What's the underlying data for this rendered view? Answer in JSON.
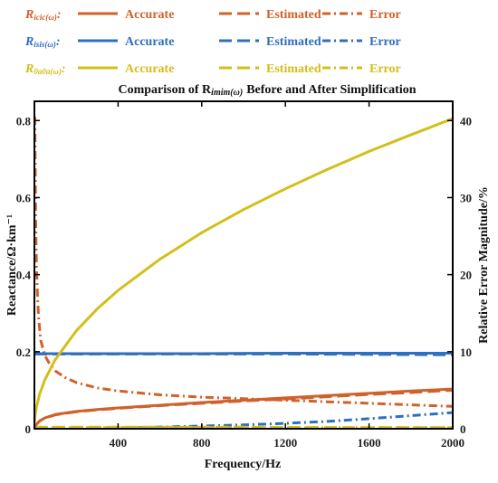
{
  "chart_data": {
    "type": "line",
    "title": "Comparison of R",
    "title_sub": "imim(ω)",
    "title_suffix": "Before and After Simplification",
    "xlabel": "Frequency/Hz",
    "ylabel_left": "Reactance/Ω·km⁻¹",
    "ylabel_right": "Relative Error Magnitude/%",
    "xlim": [
      0,
      2000
    ],
    "ylim_left": [
      0,
      0.85
    ],
    "ylim_right": [
      0,
      42.5
    ],
    "x_ticks": [
      400,
      800,
      1200,
      1600,
      2000
    ],
    "y_ticks_left": [
      0,
      0.2,
      0.4,
      0.6,
      0.8
    ],
    "y_ticks_right": [
      0,
      10,
      20,
      30,
      40
    ],
    "x_tick_labels": [
      "400",
      "800",
      "1200",
      "1600",
      "2000"
    ],
    "y_tick_labels_left": [
      "0",
      "0.2",
      "0.4",
      "0.6",
      "0.8"
    ],
    "y_tick_labels_right": [
      "0",
      "10",
      "20",
      "30",
      "40"
    ],
    "legend_position": "above plot",
    "legend": {
      "col_labels": [
        "Accurate",
        "Estimated",
        "Error"
      ],
      "groups": [
        {
          "name": "R",
          "sub": "icic(ω)",
          "color": "#D0612A"
        },
        {
          "name": "R",
          "sub": "isis(ω)",
          "color": "#2E6FBF"
        },
        {
          "name": "R",
          "sub": "0a0a(ω)",
          "color": "#D4BE1A"
        }
      ]
    },
    "series": [
      {
        "group": 0,
        "kind": "accurate",
        "axis": "left",
        "style": "solid",
        "color": "#D0612A",
        "x": [
          1,
          5,
          10,
          25,
          50,
          100,
          200,
          300,
          400,
          600,
          800,
          1000,
          1200,
          1400,
          1600,
          1800,
          2000
        ],
        "y": [
          0.003,
          0.008,
          0.012,
          0.02,
          0.028,
          0.037,
          0.045,
          0.05,
          0.054,
          0.061,
          0.068,
          0.074,
          0.08,
          0.086,
          0.092,
          0.098,
          0.103
        ]
      },
      {
        "group": 0,
        "kind": "estimated",
        "axis": "left",
        "style": "dashed",
        "color": "#D0612A",
        "x": [
          1,
          5,
          10,
          25,
          50,
          100,
          200,
          300,
          400,
          600,
          800,
          1000,
          1200,
          1400,
          1600,
          1800,
          2000
        ],
        "y": [
          0.003,
          0.008,
          0.012,
          0.02,
          0.028,
          0.036,
          0.044,
          0.049,
          0.053,
          0.06,
          0.066,
          0.072,
          0.077,
          0.083,
          0.089,
          0.094,
          0.1
        ]
      },
      {
        "group": 0,
        "kind": "error",
        "axis": "right",
        "style": "dashdot",
        "color": "#D0612A",
        "x": [
          2,
          6,
          10,
          15,
          20,
          30,
          50,
          75,
          100,
          150,
          200,
          300,
          400,
          600,
          800,
          1000,
          1200,
          1400,
          1600,
          1800,
          2000
        ],
        "y": [
          40.5,
          27,
          21,
          17,
          14.5,
          11.5,
          9.5,
          8.3,
          7.5,
          6.6,
          6.0,
          5.3,
          4.9,
          4.4,
          4.1,
          3.9,
          3.7,
          3.5,
          3.3,
          3.1,
          2.9
        ]
      },
      {
        "group": 1,
        "kind": "accurate",
        "axis": "left",
        "style": "solid",
        "color": "#2E6FBF",
        "x": [
          0,
          200,
          400,
          800,
          1200,
          1600,
          2000
        ],
        "y": [
          0.195,
          0.195,
          0.195,
          0.195,
          0.196,
          0.196,
          0.196
        ]
      },
      {
        "group": 1,
        "kind": "estimated",
        "axis": "left",
        "style": "dashed",
        "color": "#2E6FBF",
        "x": [
          0,
          200,
          400,
          800,
          1200,
          1600,
          2000
        ],
        "y": [
          0.194,
          0.194,
          0.194,
          0.194,
          0.194,
          0.193,
          0.192
        ]
      },
      {
        "group": 1,
        "kind": "error",
        "axis": "right",
        "style": "dashdot",
        "color": "#2E6FBF",
        "x": [
          0,
          200,
          400,
          600,
          800,
          1000,
          1200,
          1400,
          1600,
          1800,
          2000
        ],
        "y": [
          0.0,
          0.05,
          0.12,
          0.22,
          0.35,
          0.5,
          0.7,
          0.95,
          1.3,
          1.7,
          2.1
        ]
      },
      {
        "group": 2,
        "kind": "accurate",
        "axis": "left",
        "style": "solid",
        "color": "#D4BE1A",
        "x": [
          1,
          5,
          10,
          25,
          50,
          100,
          200,
          300,
          400,
          600,
          800,
          1000,
          1200,
          1400,
          1600,
          1800,
          2000
        ],
        "y": [
          0.018,
          0.04,
          0.057,
          0.09,
          0.127,
          0.18,
          0.254,
          0.311,
          0.359,
          0.44,
          0.509,
          0.569,
          0.623,
          0.673,
          0.72,
          0.763,
          0.805
        ]
      },
      {
        "group": 2,
        "kind": "estimated",
        "axis": "left",
        "style": "dashed",
        "color": "#D4BE1A",
        "x": [
          0,
          500,
          1000,
          1500,
          2000
        ],
        "y": [
          0.004,
          0.004,
          0.004,
          0.003,
          0.003
        ]
      },
      {
        "group": 2,
        "kind": "error",
        "axis": "right",
        "style": "dashdot",
        "color": "#D4BE1A",
        "x": [
          0,
          500,
          1000,
          1500,
          2000
        ],
        "y": [
          0.15,
          0.15,
          0.15,
          0.15,
          0.15
        ]
      }
    ]
  }
}
